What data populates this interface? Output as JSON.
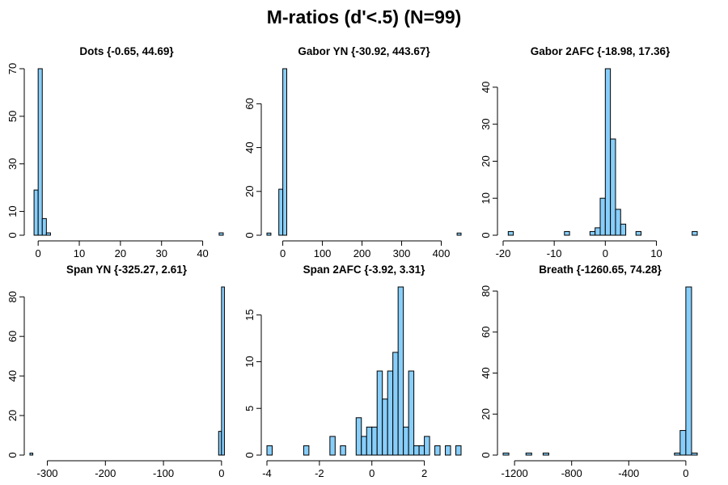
{
  "figure": {
    "title": "M-ratios (d'<.5) (N=99)",
    "bar_color": "#87cefa",
    "bar_edge": "#000000"
  },
  "chart_data": [
    {
      "type": "bar",
      "title": "Dots {-0.65, 44.69}",
      "xlim": [
        -2,
        45
      ],
      "ylim": [
        0,
        70
      ],
      "xticks": [
        0,
        10,
        20,
        30,
        40
      ],
      "yticks": [
        0,
        10,
        30,
        50,
        70
      ],
      "bins": [
        [
          -1,
          0
        ],
        [
          0,
          1
        ],
        [
          1,
          2
        ],
        [
          2,
          3
        ],
        [
          44,
          45
        ]
      ],
      "counts": [
        19,
        70,
        7,
        1,
        1
      ]
    },
    {
      "type": "bar",
      "title": "Gabor YN {-30.92, 443.67}",
      "xlim": [
        -40,
        450
      ],
      "ylim": [
        0,
        76
      ],
      "xticks": [
        0,
        100,
        200,
        300,
        400
      ],
      "yticks": [
        0,
        20,
        40,
        60
      ],
      "bins": [
        [
          -40,
          -30
        ],
        [
          -10,
          0
        ],
        [
          0,
          10
        ],
        [
          440,
          450
        ]
      ],
      "counts": [
        1,
        21,
        76,
        1
      ]
    },
    {
      "type": "bar",
      "title": "Gabor 2AFC {-18.98, 17.36}",
      "xlim": [
        -20,
        18
      ],
      "ylim": [
        0,
        45
      ],
      "xticks": [
        -20,
        -10,
        0,
        10
      ],
      "yticks": [
        0,
        10,
        20,
        30,
        40
      ],
      "bins": [
        [
          -19,
          -18
        ],
        [
          -8,
          -7
        ],
        [
          -3,
          -2
        ],
        [
          -2,
          -1
        ],
        [
          -1,
          0
        ],
        [
          0,
          1
        ],
        [
          1,
          2
        ],
        [
          2,
          3
        ],
        [
          3,
          4
        ],
        [
          6,
          7
        ],
        [
          17,
          18
        ]
      ],
      "counts": [
        1,
        1,
        1,
        2,
        10,
        45,
        26,
        7,
        3,
        1,
        1
      ]
    },
    {
      "type": "bar",
      "title": "Span YN {-325.27, 2.61}",
      "xlim": [
        -330,
        3
      ],
      "ylim": [
        0,
        85
      ],
      "xticks": [
        -300,
        -200,
        -100,
        0
      ],
      "yticks": [
        0,
        20,
        40,
        60,
        80
      ],
      "bins": [
        [
          -330,
          -325
        ],
        [
          -5,
          0
        ],
        [
          0,
          5
        ]
      ],
      "counts": [
        1,
        12,
        85
      ]
    },
    {
      "type": "bar",
      "title": "Span 2AFC {-3.92, 3.31}",
      "xlim": [
        -4,
        3.4
      ],
      "ylim": [
        0,
        18
      ],
      "xticks": [
        -4,
        -2,
        0,
        2
      ],
      "yticks": [
        0,
        5,
        10,
        15
      ],
      "bins": [
        [
          -4,
          -3.8
        ],
        [
          -2.6,
          -2.4
        ],
        [
          -1.6,
          -1.4
        ],
        [
          -1.2,
          -1.0
        ],
        [
          -0.6,
          -0.4
        ],
        [
          -0.4,
          -0.2
        ],
        [
          -0.2,
          0.0
        ],
        [
          0.0,
          0.2
        ],
        [
          0.2,
          0.4
        ],
        [
          0.4,
          0.6
        ],
        [
          0.6,
          0.8
        ],
        [
          0.8,
          1.0
        ],
        [
          1.0,
          1.2
        ],
        [
          1.2,
          1.4
        ],
        [
          1.4,
          1.6
        ],
        [
          1.6,
          1.8
        ],
        [
          1.8,
          2.0
        ],
        [
          2.0,
          2.2
        ],
        [
          2.4,
          2.6
        ],
        [
          2.8,
          3.0
        ],
        [
          3.2,
          3.4
        ]
      ],
      "counts": [
        1,
        1,
        2,
        1,
        4,
        2,
        3,
        3,
        9,
        6,
        9,
        11,
        18,
        3,
        9,
        1,
        1,
        2,
        1,
        1,
        1
      ]
    },
    {
      "type": "bar",
      "title": "Breath {-1260.65, 74.28}",
      "xlim": [
        -1280,
        80
      ],
      "ylim": [
        0,
        82
      ],
      "xticks": [
        -1200,
        -800,
        -400,
        0
      ],
      "yticks": [
        0,
        20,
        40,
        60,
        80
      ],
      "bins": [
        [
          -1280,
          -1240
        ],
        [
          -1120,
          -1080
        ],
        [
          -1000,
          -960
        ],
        [
          -80,
          -40
        ],
        [
          -40,
          0
        ],
        [
          0,
          40
        ],
        [
          40,
          80
        ]
      ],
      "counts": [
        1,
        1,
        1,
        1,
        12,
        82,
        1
      ]
    }
  ]
}
